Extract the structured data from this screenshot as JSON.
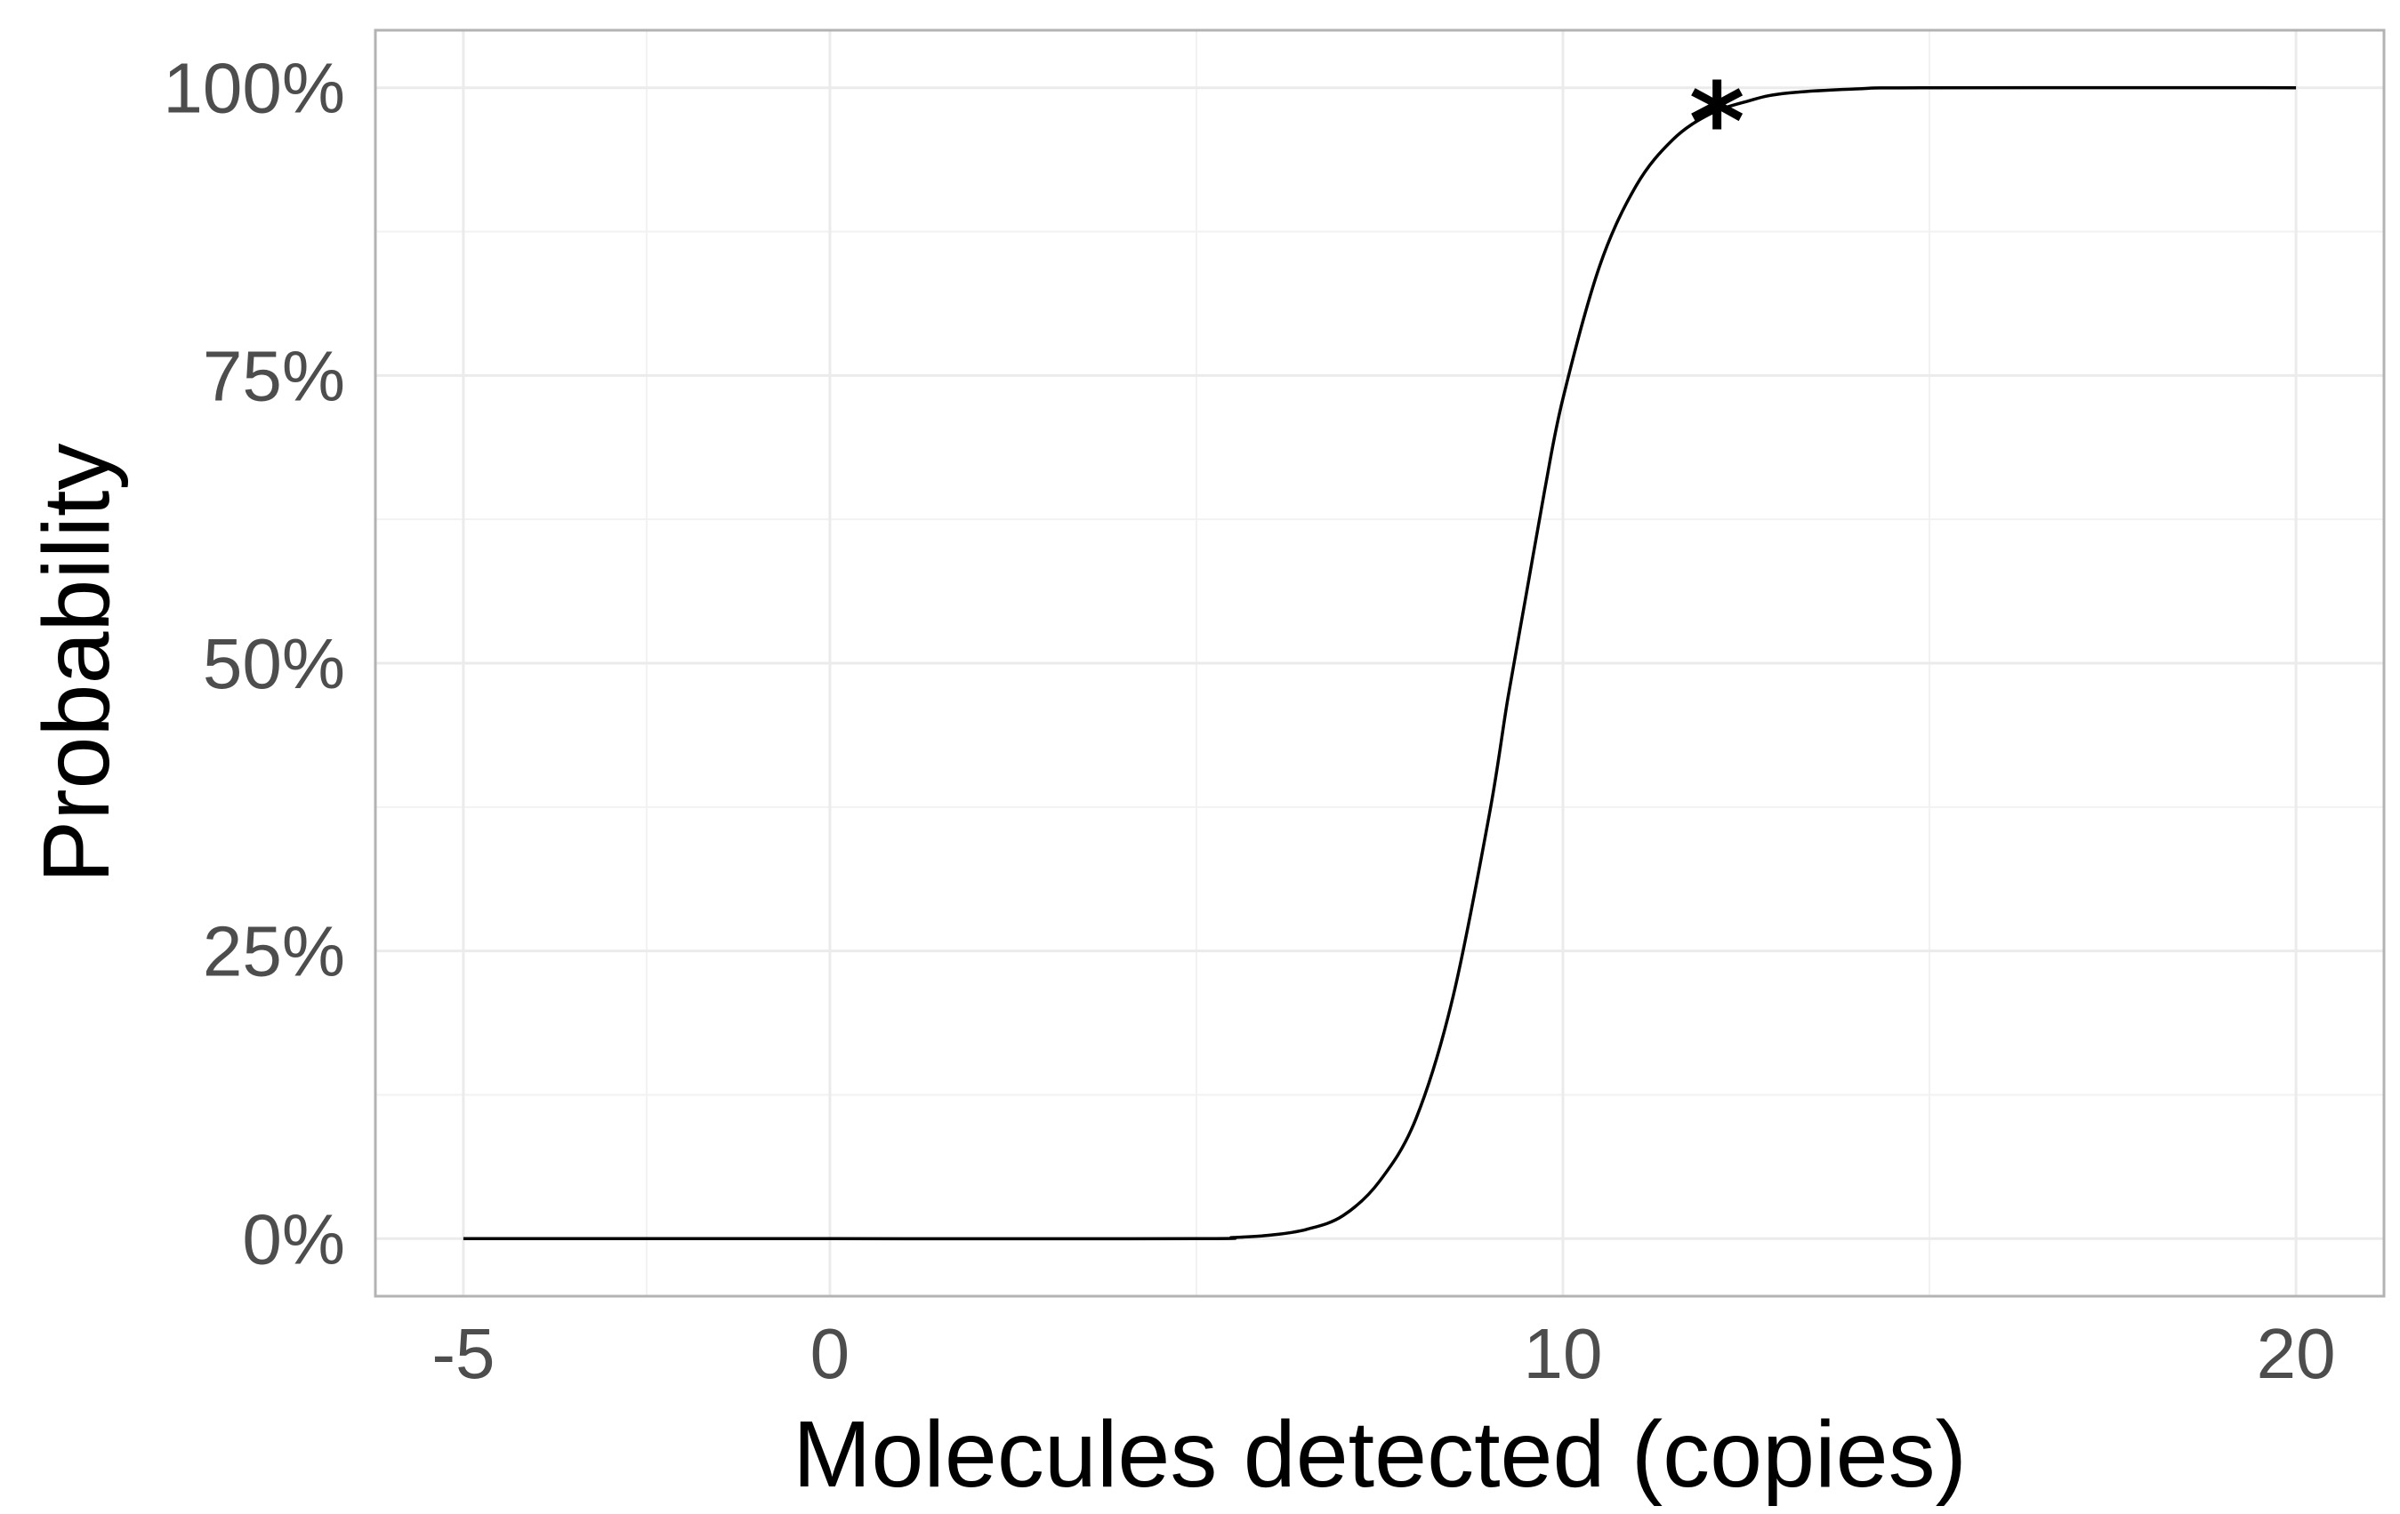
{
  "chart_data": {
    "type": "line",
    "title": "",
    "xlabel": "Molecules detected (copies)",
    "ylabel": "Probability",
    "xlim": [
      -6.2,
      21.2
    ],
    "ylim": [
      -0.05,
      1.05
    ],
    "x_ticks": [
      -5,
      0,
      10,
      20
    ],
    "x_tick_labels": [
      "-5",
      "0",
      "10",
      "20"
    ],
    "x_minor_ticks": [
      -2.5,
      5,
      15
    ],
    "y_ticks": [
      0,
      0.25,
      0.5,
      0.75,
      1
    ],
    "y_tick_labels": [
      "0%",
      "25%",
      "50%",
      "75%",
      "100%"
    ],
    "y_minor_ticks": [
      0.125,
      0.375,
      0.625,
      0.875
    ],
    "grid": true,
    "legend": "none",
    "series": [
      {
        "color": "#000000",
        "x": [
          -5,
          0,
          5,
          5.5,
          6,
          6.5,
          7,
          7.5,
          8,
          8.5,
          9,
          9.25,
          9.5,
          9.75,
          10,
          10.5,
          11,
          11.5,
          12,
          12.5,
          13,
          14,
          15,
          20
        ],
        "y": [
          0,
          0,
          0,
          0.001,
          0.003,
          0.008,
          0.02,
          0.05,
          0.105,
          0.21,
          0.37,
          0.47,
          0.56,
          0.65,
          0.73,
          0.845,
          0.915,
          0.955,
          0.977,
          0.988,
          0.995,
          0.999,
          1.0,
          1.0
        ]
      }
    ],
    "annotations": [
      {
        "text": "*",
        "x": 12.1,
        "y": 0.975
      }
    ]
  }
}
